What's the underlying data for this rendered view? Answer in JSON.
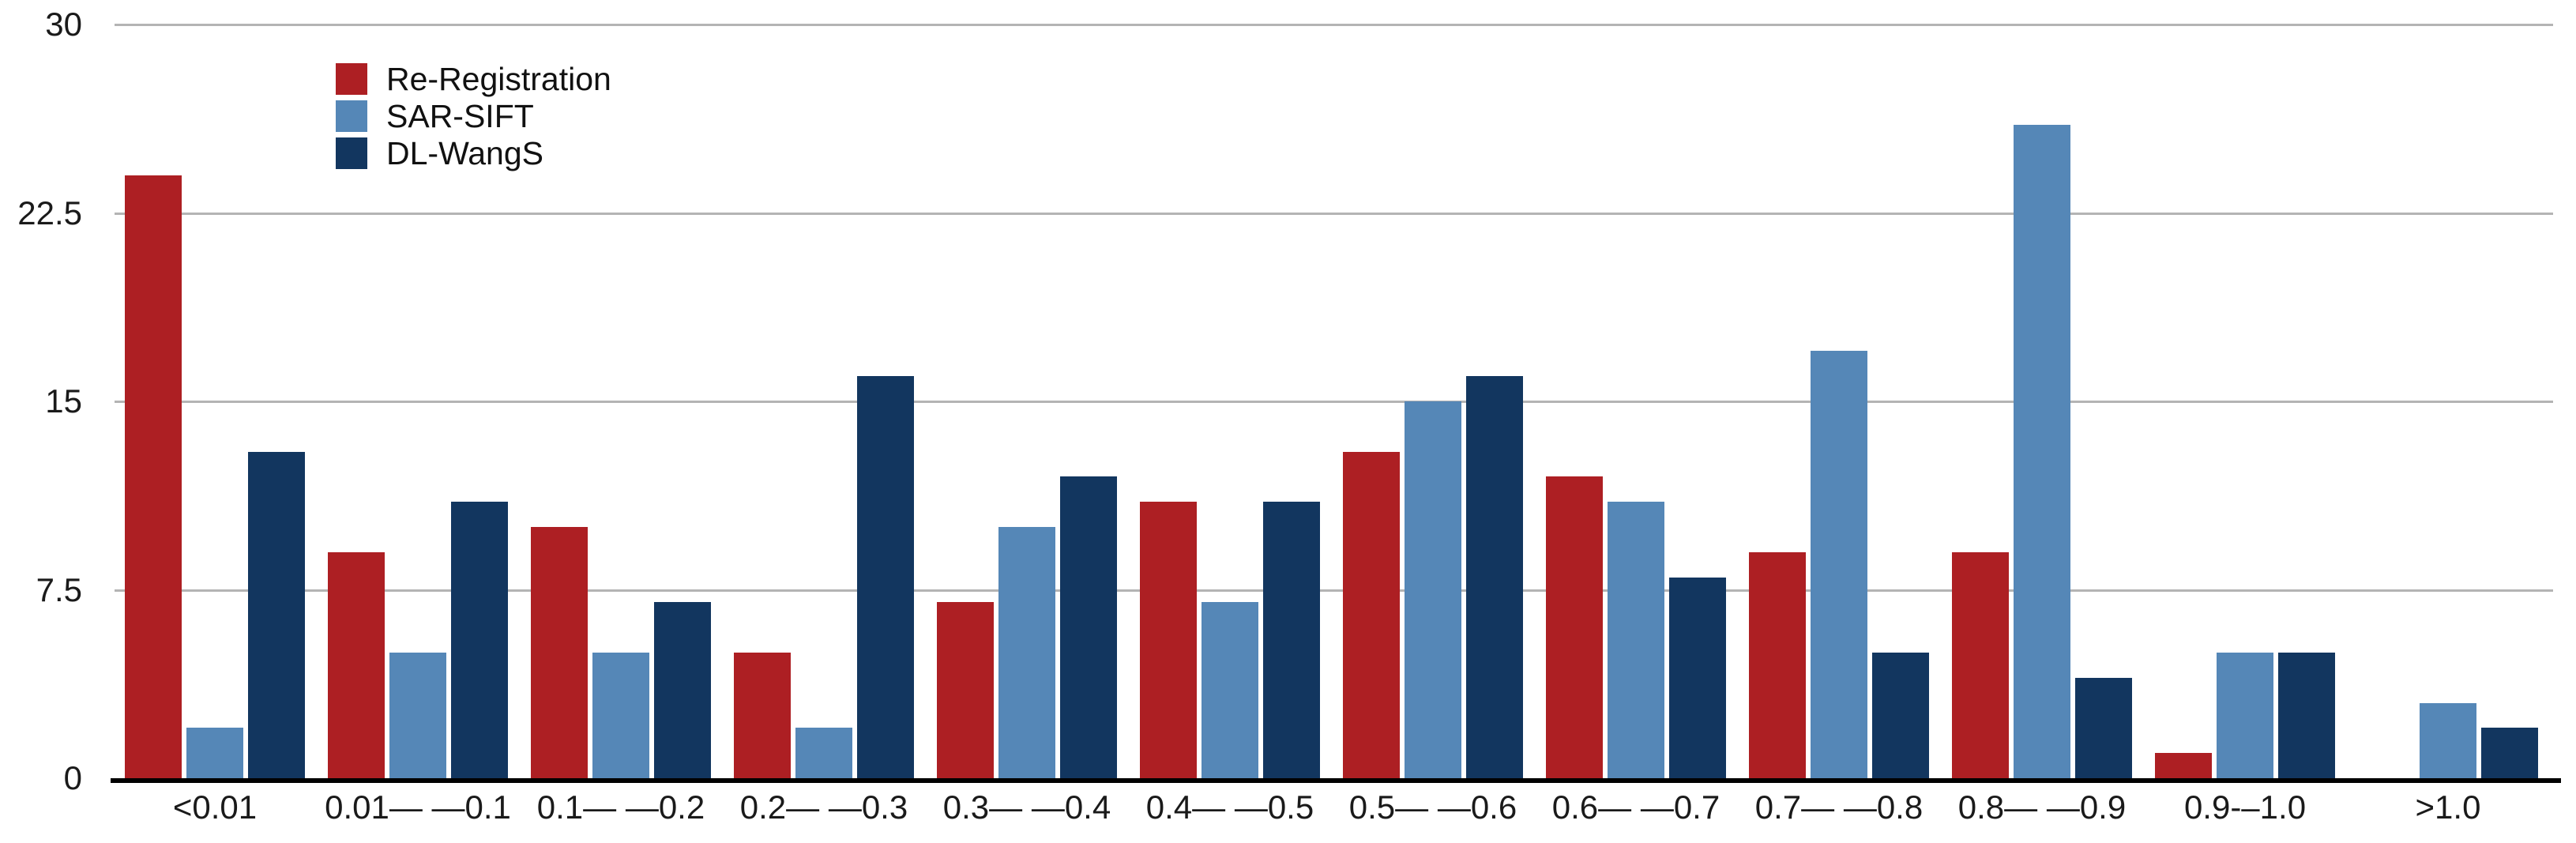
{
  "chart_data": {
    "type": "bar",
    "title": "",
    "xlabel": "",
    "ylabel": "",
    "categories": [
      "<0.01",
      "0.01— —0.1",
      "0.1— —0.2",
      "0.2— —0.3",
      "0.3— —0.4",
      "0.4— —0.5",
      "0.5— —0.6",
      "0.6— —0.7",
      "0.7— —0.8",
      "0.8— —0.9",
      "0.9-–1.0",
      ">1.0"
    ],
    "series": [
      {
        "name": "Re-Registration",
        "color": "#AD1F23",
        "values": [
          24,
          9,
          10,
          5,
          7,
          11,
          13,
          12,
          9,
          9,
          1,
          0
        ]
      },
      {
        "name": "SAR-SIFT",
        "color": "#5587B7",
        "values": [
          2,
          5,
          5,
          2,
          10,
          7,
          15,
          11,
          17,
          26,
          5,
          3
        ]
      },
      {
        "name": "DL-WangS",
        "color": "#12365F",
        "values": [
          13,
          11,
          7,
          16,
          12,
          11,
          16,
          8,
          5,
          4,
          5,
          2
        ]
      }
    ],
    "y_ticks": [
      0,
      7.5,
      15,
      22.5,
      30
    ],
    "y_tick_labels": [
      "0",
      "7.5",
      "15",
      "22.5",
      "30"
    ],
    "ylim": [
      0,
      30
    ],
    "grid": true,
    "legend_position": "top-left-inset"
  },
  "colors": {
    "background": "#ffffff",
    "gridline": "#b4b4b4",
    "axis_line": "#000000",
    "tick_text": "#1a1a1a"
  }
}
